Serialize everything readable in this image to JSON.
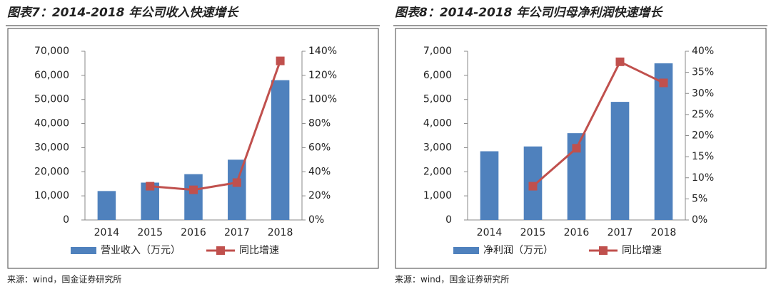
{
  "chart_data": [
    {
      "type": "bar-line",
      "title": "图表7：2014-2018 年公司收入快速增长",
      "categories": [
        "2014",
        "2015",
        "2016",
        "2017",
        "2018"
      ],
      "series": [
        {
          "name": "营业收入（万元）",
          "color": "#4f81bd",
          "values": [
            12000,
            15500,
            19000,
            25000,
            58000
          ]
        },
        {
          "name": "同比增速",
          "color": "#c0504d",
          "axis": "y2",
          "values": [
            null,
            28,
            25,
            31,
            132
          ]
        }
      ],
      "ylim": [
        0,
        70000
      ],
      "yticks": [
        0,
        {
          "value": 10000,
          "label": "10,000"
        },
        {
          "value": 20000,
          "label": "20,000"
        },
        {
          "value": 30000,
          "label": "30,000"
        },
        {
          "value": 40000,
          "label": "40,000"
        },
        {
          "value": 50000,
          "label": "50,000"
        },
        {
          "value": 60000,
          "label": "60,000"
        },
        {
          "value": 70000,
          "label": "70,000"
        }
      ],
      "y2lim": [
        0,
        140
      ],
      "y2ticks": [
        {
          "value": 0,
          "label": "0%"
        },
        {
          "value": 20,
          "label": "20%"
        },
        {
          "value": 40,
          "label": "40%"
        },
        {
          "value": 60,
          "label": "60%"
        },
        {
          "value": 80,
          "label": "80%"
        },
        {
          "value": 100,
          "label": "100%"
        },
        {
          "value": 120,
          "label": "120%"
        },
        {
          "value": 140,
          "label": "140%"
        }
      ],
      "source": "来源：wind，国金证券研究所"
    },
    {
      "type": "bar-line",
      "title": "图表8：2014-2018 年公司归母净利润快速增长",
      "categories": [
        "2014",
        "2015",
        "2016",
        "2017",
        "2018"
      ],
      "series": [
        {
          "name": "净利润（万元）",
          "color": "#4f81bd",
          "values": [
            2850,
            3050,
            3600,
            4900,
            6500
          ]
        },
        {
          "name": "同比增速",
          "color": "#c0504d",
          "axis": "y2",
          "values": [
            null,
            8,
            17,
            37.5,
            32.5
          ]
        }
      ],
      "ylim": [
        0,
        7000
      ],
      "yticks": [
        0,
        {
          "value": 1000,
          "label": "1,000"
        },
        {
          "value": 2000,
          "label": "2,000"
        },
        {
          "value": 3000,
          "label": "3,000"
        },
        {
          "value": 4000,
          "label": "4,000"
        },
        {
          "value": 5000,
          "label": "5,000"
        },
        {
          "value": 6000,
          "label": "6,000"
        },
        {
          "value": 7000,
          "label": "7,000"
        }
      ],
      "y2lim": [
        0,
        40
      ],
      "y2ticks": [
        {
          "value": 0,
          "label": "0%"
        },
        {
          "value": 5,
          "label": "5%"
        },
        {
          "value": 10,
          "label": "10%"
        },
        {
          "value": 15,
          "label": "15%"
        },
        {
          "value": 20,
          "label": "20%"
        },
        {
          "value": 25,
          "label": "25%"
        },
        {
          "value": 30,
          "label": "30%"
        },
        {
          "value": 35,
          "label": "35%"
        },
        {
          "value": 40,
          "label": "40%"
        }
      ],
      "source": "来源：wind，国金证券研究所"
    }
  ]
}
